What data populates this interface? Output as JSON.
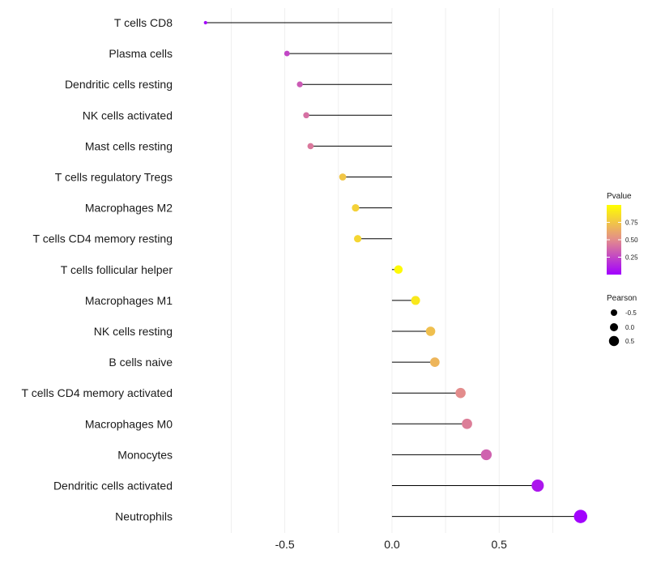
{
  "chart_data": {
    "type": "lollipop",
    "title": "",
    "xlabel": "",
    "ylabel": "",
    "xlim": [
      -0.99,
      0.93
    ],
    "xticks": [
      -0.5,
      0.0,
      0.5
    ],
    "xtick_labels": [
      "-0.5",
      "0.0",
      "0.5"
    ],
    "minor_gridlines": [
      -0.75,
      -0.25,
      0.25,
      0.75
    ],
    "grid": true,
    "categories": [
      "T cells CD8",
      "Plasma cells",
      "Dendritic cells resting",
      "NK cells activated",
      "Mast cells resting",
      "T cells regulatory  Tregs",
      "Macrophages M2",
      "T cells CD4 memory resting",
      "T cells follicular helper",
      "Macrophages M1",
      "NK cells resting",
      "B cells naive",
      "T cells CD4 memory activated",
      "Macrophages M0",
      "Monocytes",
      "Dendritic cells activated",
      "Neutrophils"
    ],
    "pearson": [
      -0.87,
      -0.49,
      -0.43,
      -0.4,
      -0.38,
      -0.23,
      -0.17,
      -0.16,
      0.03,
      0.11,
      0.18,
      0.2,
      0.32,
      0.35,
      0.44,
      0.68,
      0.88
    ],
    "pvalue": [
      0.02,
      0.25,
      0.32,
      0.4,
      0.43,
      0.75,
      0.8,
      0.82,
      0.98,
      0.9,
      0.72,
      0.68,
      0.5,
      0.45,
      0.35,
      0.08,
      0.01
    ],
    "legend": {
      "placement": "right",
      "color": {
        "title": "Pvalue",
        "ticks": [
          0.75,
          0.5,
          0.25
        ],
        "tick_labels": [
          "0.75",
          "0.50",
          "0.25"
        ],
        "range": [
          0.0,
          1.0
        ],
        "low_color": "#a100ff",
        "mid_color": "#e38c8c",
        "high_color": "#ffff00"
      },
      "size": {
        "title": "Pearson",
        "values": [
          -0.5,
          0.0,
          0.5
        ],
        "labels": [
          "-0.5",
          "0.0",
          "0.5"
        ]
      }
    },
    "colors": {
      "stem": "#000000",
      "grid": "#ebebeb"
    }
  }
}
